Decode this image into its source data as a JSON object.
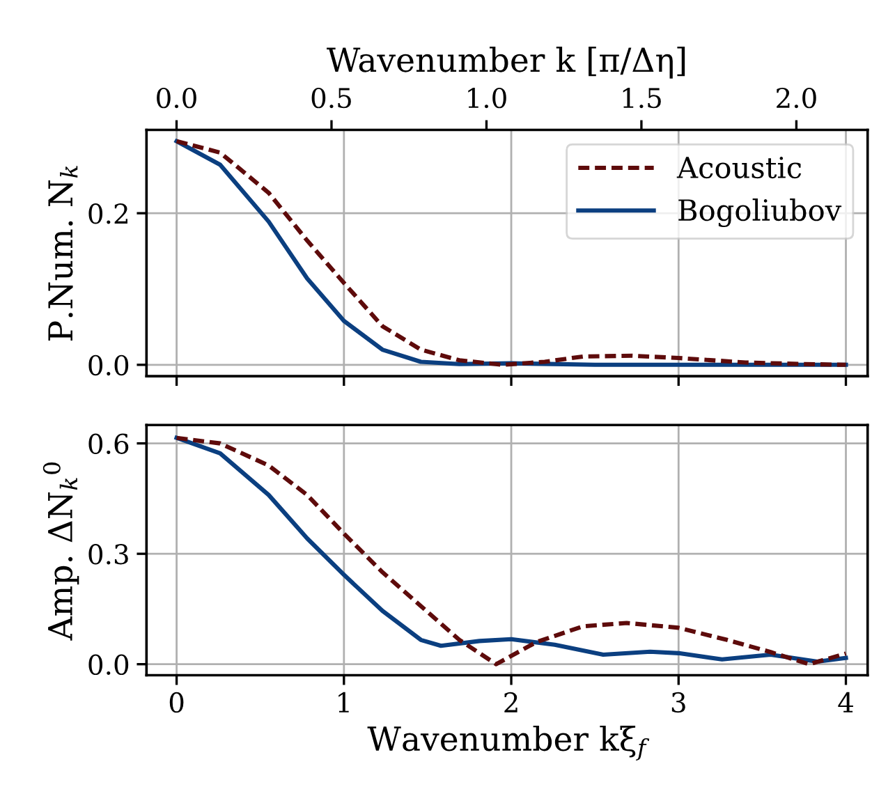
{
  "chart_data": [
    {
      "type": "line",
      "ylabel": "P.Num. N$_{k}$",
      "x2label": "Wavenumber k [π/Δη]",
      "xlim": [
        -0.18,
        4.13
      ],
      "ylim": [
        -0.015,
        0.31
      ],
      "yticks": [
        {
          "value": 0.0,
          "label": "0.0"
        },
        0.2
      ],
      "x2lim": [
        -0.097,
        2.23
      ],
      "x2ticks": [
        {
          "value": 0.0,
          "label": "0.0"
        },
        0.5,
        {
          "value": 1.0,
          "label": "1.0"
        },
        1.5,
        {
          "value": 2.0,
          "label": "2.0"
        }
      ],
      "tick_labels": "y",
      "grid": true,
      "legend": "top right",
      "series": [
        {
          "name": "Acoustic",
          "color": "#5e0b0b",
          "line_style": "dashed",
          "x": [
            0,
            0.26,
            0.55,
            0.78,
            1.0,
            1.23,
            1.46,
            1.69,
            1.95,
            2.2,
            2.43,
            2.72,
            3.0,
            3.4,
            3.75,
            4.0
          ],
          "values": [
            0.295,
            0.28,
            0.227,
            0.164,
            0.108,
            0.051,
            0.02,
            0.006,
            0.0,
            0.004,
            0.011,
            0.012,
            0.009,
            0.003,
            0.001,
            0.0
          ]
        },
        {
          "name": "Bogoliubov",
          "color": "#0b3f80",
          "line_style": "solid",
          "x": [
            0,
            0.26,
            0.55,
            0.78,
            1.0,
            1.23,
            1.46,
            1.69,
            2.0,
            2.5,
            3.0,
            3.5,
            4.0
          ],
          "values": [
            0.295,
            0.264,
            0.189,
            0.114,
            0.058,
            0.02,
            0.004,
            0.001,
            0.002,
            0.0,
            0.0,
            0.0,
            0.0
          ]
        }
      ]
    },
    {
      "type": "line",
      "xlabel": "Wavenumber kξ$_{f}$",
      "ylabel": "Amp. ΔN$_{k}$$^{0}$",
      "xlim": [
        -0.18,
        4.13
      ],
      "ylim": [
        -0.03,
        0.65
      ],
      "xticks": [
        0,
        1,
        2,
        3,
        4
      ],
      "yticks": [
        {
          "value": 0.0,
          "label": "0.0"
        },
        0.3,
        0.6
      ],
      "grid": true,
      "series": [
        {
          "color": "#5e0b0b",
          "line_style": "dashed",
          "x": [
            0,
            0.26,
            0.55,
            0.78,
            1.0,
            1.23,
            1.46,
            1.69,
            1.91,
            2.15,
            2.43,
            2.69,
            3.0,
            3.29,
            3.55,
            3.78,
            4.0
          ],
          "values": [
            0.615,
            0.6,
            0.54,
            0.46,
            0.355,
            0.25,
            0.158,
            0.066,
            0.0,
            0.06,
            0.103,
            0.112,
            0.099,
            0.066,
            0.033,
            0.0,
            0.029
          ]
        },
        {
          "color": "#0b3f80",
          "line_style": "solid",
          "x": [
            0,
            0.26,
            0.55,
            0.78,
            1.0,
            1.23,
            1.46,
            1.58,
            1.81,
            2.0,
            2.26,
            2.55,
            2.83,
            3.0,
            3.26,
            3.55,
            3.83,
            4.0
          ],
          "values": [
            0.615,
            0.573,
            0.46,
            0.342,
            0.243,
            0.145,
            0.066,
            0.05,
            0.063,
            0.068,
            0.053,
            0.026,
            0.034,
            0.03,
            0.013,
            0.026,
            0.007,
            0.017
          ]
        }
      ]
    }
  ]
}
